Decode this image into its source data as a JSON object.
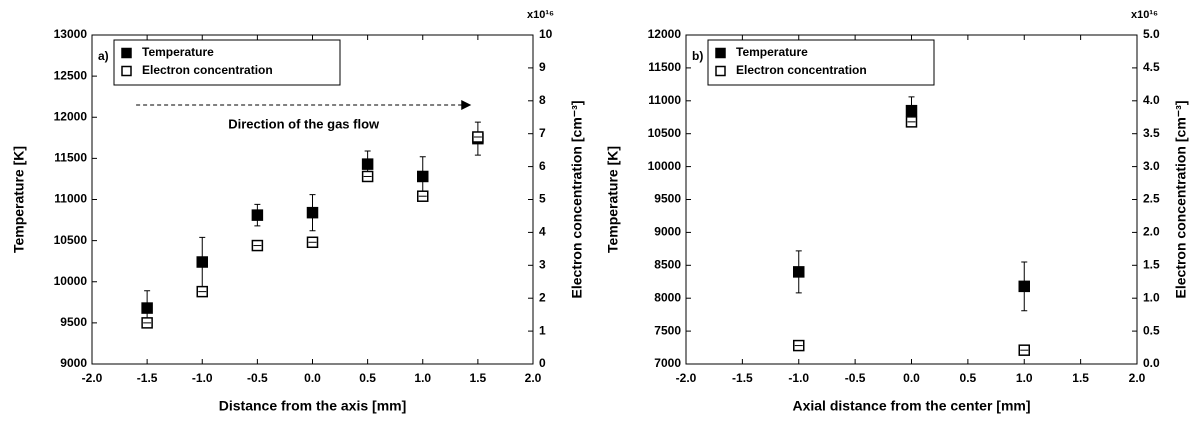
{
  "chart_data": [
    {
      "type": "scatter",
      "panel_label": "a)",
      "xlabel": "Distance from the axis [mm]",
      "ylabel": "Temperature [K]",
      "y2label": "Electron concentration [cm⁻³]",
      "y2_multiplier": "x10¹⁶",
      "annotation": "Direction of the gas flow",
      "xlim": [
        -2,
        2
      ],
      "xticks": [
        {
          "value": -2,
          "label": "-2.0"
        },
        {
          "value": -1.5,
          "label": "-1.5"
        },
        {
          "value": -1,
          "label": "-1.0"
        },
        {
          "value": -0.5,
          "label": "-0.5"
        },
        {
          "value": 0,
          "label": "0.0"
        },
        {
          "value": 0.5,
          "label": "0.5"
        },
        {
          "value": 1,
          "label": "1.0"
        },
        {
          "value": 1.5,
          "label": "1.5"
        },
        {
          "value": 2,
          "label": "2.0"
        }
      ],
      "ylim": [
        9000,
        13000
      ],
      "yticks": [
        9000,
        9500,
        10000,
        10500,
        11000,
        11500,
        12000,
        12500,
        13000
      ],
      "y2lim": [
        0,
        10
      ],
      "y2ticks": [
        0,
        1,
        2,
        3,
        4,
        5,
        6,
        7,
        8,
        9,
        10
      ],
      "series": [
        {
          "name": "Temperature",
          "marker": "filled-square",
          "color": "#000000",
          "x": [
            -1.5,
            -1,
            -0.5,
            0,
            0.5,
            1,
            1.5
          ],
          "values": [
            9680,
            10240,
            10810,
            10840,
            11430,
            11280,
            11740
          ],
          "errors": [
            210,
            300,
            130,
            220,
            160,
            240,
            200
          ]
        },
        {
          "name": "Electron concentration",
          "marker": "open-square",
          "color": "#000000",
          "axis": "y2",
          "x": [
            -1.5,
            -1,
            -0.5,
            0,
            0.5,
            1,
            1.5
          ],
          "values": [
            1.25,
            2.2,
            3.6,
            3.7,
            5.7,
            5.1,
            6.9
          ],
          "errors": [
            0.15,
            0.15,
            0.15,
            0.15,
            0.15,
            0.15,
            0.15
          ]
        }
      ]
    },
    {
      "type": "scatter",
      "panel_label": "b)",
      "xlabel": "Axial distance from the center [mm]",
      "ylabel": "Temperature [K]",
      "y2label": "Electron concentration [cm⁻³]",
      "y2_multiplier": "x10¹⁶",
      "xlim": [
        -2,
        2
      ],
      "xticks": [
        {
          "value": -2,
          "label": "-2.0"
        },
        {
          "value": -1.5,
          "label": "-1.5"
        },
        {
          "value": -1,
          "label": "-1.0"
        },
        {
          "value": -0.5,
          "label": "-0.5"
        },
        {
          "value": 0,
          "label": "0.0"
        },
        {
          "value": 0.5,
          "label": "0.5"
        },
        {
          "value": 1,
          "label": "1.0"
        },
        {
          "value": 1.5,
          "label": "1.5"
        },
        {
          "value": 2,
          "label": "2.0"
        }
      ],
      "ylim": [
        7000,
        12000
      ],
      "yticks": [
        7000,
        7500,
        8000,
        8500,
        9000,
        9500,
        10000,
        10500,
        11000,
        11500,
        12000
      ],
      "y2lim": [
        0,
        5
      ],
      "y2ticks": [
        {
          "value": 0,
          "label": "0.0"
        },
        0.5,
        {
          "value": 1,
          "label": "1.0"
        },
        1.5,
        {
          "value": 2,
          "label": "2.0"
        },
        2.5,
        {
          "value": 3,
          "label": "3.0"
        },
        3.5,
        {
          "value": 4,
          "label": "4.0"
        },
        4.5,
        {
          "value": 5,
          "label": "5.0"
        }
      ],
      "series": [
        {
          "name": "Temperature",
          "marker": "filled-square",
          "color": "#000000",
          "x": [
            -1,
            0,
            1
          ],
          "values": [
            8400,
            10850,
            8180
          ],
          "errors": [
            320,
            210,
            370
          ]
        },
        {
          "name": "Electron concentration",
          "marker": "open-square",
          "color": "#000000",
          "axis": "y2",
          "x": [
            -1,
            0,
            1
          ],
          "values": [
            0.28,
            3.68,
            0.21
          ],
          "errors": [
            0.05,
            0.05,
            0.05
          ]
        }
      ]
    }
  ]
}
